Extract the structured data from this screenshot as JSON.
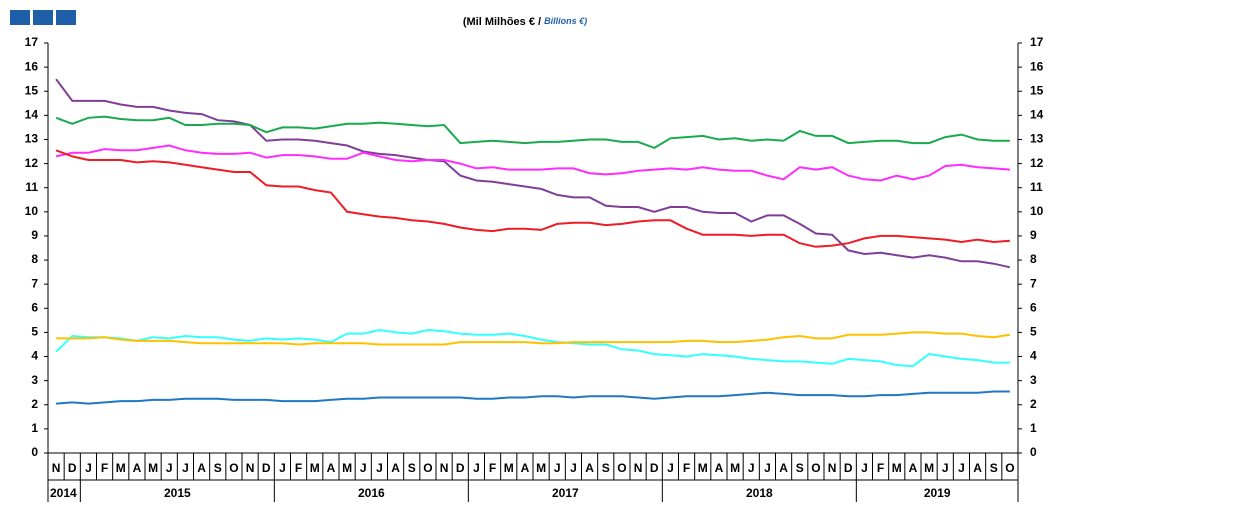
{
  "chart_data": {
    "type": "line",
    "subtitle": "(Mil Milhões € / ",
    "subtitle_en": "Billions  €)",
    "categories": [
      "N",
      "D",
      "J",
      "F",
      "M",
      "A",
      "M",
      "J",
      "J",
      "A",
      "S",
      "O",
      "N",
      "D",
      "J",
      "F",
      "M",
      "A",
      "M",
      "J",
      "J",
      "A",
      "S",
      "O",
      "N",
      "D",
      "J",
      "F",
      "M",
      "A",
      "M",
      "J",
      "J",
      "A",
      "S",
      "O",
      "N",
      "D",
      "J",
      "F",
      "M",
      "A",
      "M",
      "J",
      "J",
      "A",
      "S",
      "O",
      "N",
      "D",
      "J",
      "F",
      "M",
      "A",
      "M",
      "J",
      "J",
      "A",
      "S",
      "O"
    ],
    "years": [
      "2014",
      "2015",
      "2016",
      "2017",
      "2018",
      "2019"
    ],
    "ylim": [
      0,
      17
    ],
    "yticks": [
      0,
      1,
      2,
      3,
      4,
      5,
      6,
      7,
      8,
      9,
      10,
      11,
      12,
      13,
      14,
      15,
      16,
      17
    ],
    "y2lim": [
      0,
      17
    ],
    "y2ticks": [
      0,
      1,
      2,
      3,
      4,
      5,
      6,
      7,
      8,
      9,
      10,
      11,
      12,
      13,
      14,
      15,
      16,
      17
    ],
    "grid": false,
    "series": [
      {
        "color": "#7f3f98",
        "values": [
          15.5,
          14.6,
          14.6,
          14.6,
          14.45,
          14.35,
          14.35,
          14.2,
          14.1,
          14.05,
          13.8,
          13.75,
          13.6,
          12.95,
          13.0,
          13.0,
          12.95,
          12.85,
          12.75,
          12.5,
          12.4,
          12.35,
          12.25,
          12.15,
          12.1,
          11.5,
          11.3,
          11.25,
          11.15,
          11.05,
          10.95,
          10.7,
          10.6,
          10.6,
          10.25,
          10.2,
          10.2,
          10.0,
          10.2,
          10.2,
          10.0,
          9.95,
          9.95,
          9.6,
          9.85,
          9.85,
          9.5,
          9.1,
          9.05,
          8.4,
          8.25,
          8.3,
          8.2,
          8.1,
          8.2,
          8.1,
          7.95,
          7.95,
          7.85,
          7.7
        ]
      },
      {
        "color": "#1aa94e",
        "values": [
          13.9,
          13.65,
          13.9,
          13.95,
          13.85,
          13.8,
          13.8,
          13.9,
          13.6,
          13.6,
          13.65,
          13.65,
          13.6,
          13.3,
          13.5,
          13.5,
          13.45,
          13.55,
          13.65,
          13.65,
          13.7,
          13.65,
          13.6,
          13.55,
          13.6,
          12.85,
          12.9,
          12.95,
          12.9,
          12.85,
          12.9,
          12.9,
          12.95,
          13.0,
          13.0,
          12.9,
          12.9,
          12.65,
          13.05,
          13.1,
          13.15,
          13.0,
          13.05,
          12.95,
          13.0,
          12.95,
          13.35,
          13.15,
          13.15,
          12.85,
          12.9,
          12.95,
          12.95,
          12.85,
          12.85,
          13.1,
          13.2,
          13.0,
          12.95,
          12.95
        ]
      },
      {
        "color": "#ff2cff",
        "values": [
          12.3,
          12.45,
          12.45,
          12.6,
          12.55,
          12.55,
          12.65,
          12.75,
          12.55,
          12.45,
          12.4,
          12.4,
          12.45,
          12.25,
          12.35,
          12.35,
          12.3,
          12.2,
          12.2,
          12.45,
          12.3,
          12.15,
          12.1,
          12.15,
          12.15,
          12.0,
          11.8,
          11.85,
          11.75,
          11.75,
          11.75,
          11.8,
          11.8,
          11.6,
          11.55,
          11.6,
          11.7,
          11.75,
          11.8,
          11.75,
          11.85,
          11.75,
          11.7,
          11.7,
          11.5,
          11.35,
          11.85,
          11.75,
          11.85,
          11.5,
          11.35,
          11.3,
          11.5,
          11.35,
          11.5,
          11.9,
          11.95,
          11.85,
          11.8,
          11.75
        ]
      },
      {
        "color": "#ee1c25",
        "values": [
          12.55,
          12.3,
          12.15,
          12.15,
          12.15,
          12.05,
          12.1,
          12.05,
          11.95,
          11.85,
          11.75,
          11.65,
          11.65,
          11.1,
          11.05,
          11.05,
          10.9,
          10.8,
          10.0,
          9.9,
          9.8,
          9.75,
          9.65,
          9.6,
          9.5,
          9.35,
          9.25,
          9.2,
          9.3,
          9.3,
          9.25,
          9.5,
          9.55,
          9.55,
          9.45,
          9.5,
          9.6,
          9.65,
          9.65,
          9.3,
          9.05,
          9.05,
          9.05,
          9.0,
          9.05,
          9.05,
          8.7,
          8.55,
          8.6,
          8.7,
          8.9,
          9.0,
          9.0,
          8.95,
          8.9,
          8.85,
          8.75,
          8.85,
          8.75,
          8.8
        ]
      },
      {
        "color": "#33ffff",
        "values": [
          4.2,
          4.85,
          4.8,
          4.8,
          4.75,
          4.65,
          4.8,
          4.75,
          4.85,
          4.8,
          4.8,
          4.7,
          4.65,
          4.75,
          4.7,
          4.75,
          4.7,
          4.6,
          4.95,
          4.95,
          5.1,
          5.0,
          4.95,
          5.1,
          5.05,
          4.95,
          4.9,
          4.9,
          4.95,
          4.85,
          4.7,
          4.6,
          4.55,
          4.5,
          4.5,
          4.3,
          4.25,
          4.1,
          4.05,
          4.0,
          4.1,
          4.05,
          4.0,
          3.9,
          3.85,
          3.8,
          3.8,
          3.75,
          3.7,
          3.9,
          3.85,
          3.8,
          3.65,
          3.6,
          4.1,
          4.0,
          3.9,
          3.85,
          3.75,
          3.75
        ]
      },
      {
        "color": "#ffc000",
        "values": [
          4.75,
          4.75,
          4.75,
          4.8,
          4.7,
          4.65,
          4.65,
          4.65,
          4.6,
          4.55,
          4.55,
          4.55,
          4.55,
          4.55,
          4.55,
          4.5,
          4.55,
          4.55,
          4.55,
          4.55,
          4.5,
          4.5,
          4.5,
          4.5,
          4.5,
          4.6,
          4.6,
          4.6,
          4.6,
          4.6,
          4.55,
          4.55,
          4.6,
          4.6,
          4.6,
          4.6,
          4.6,
          4.6,
          4.6,
          4.65,
          4.65,
          4.6,
          4.6,
          4.65,
          4.7,
          4.8,
          4.85,
          4.75,
          4.75,
          4.9,
          4.9,
          4.9,
          4.95,
          5.0,
          5.0,
          4.95,
          4.95,
          4.85,
          4.8,
          4.9
        ]
      },
      {
        "color": "#1f78c1",
        "values": [
          2.05,
          2.1,
          2.05,
          2.1,
          2.15,
          2.15,
          2.2,
          2.2,
          2.25,
          2.25,
          2.25,
          2.2,
          2.2,
          2.2,
          2.15,
          2.15,
          2.15,
          2.2,
          2.25,
          2.25,
          2.3,
          2.3,
          2.3,
          2.3,
          2.3,
          2.3,
          2.25,
          2.25,
          2.3,
          2.3,
          2.35,
          2.35,
          2.3,
          2.35,
          2.35,
          2.35,
          2.3,
          2.25,
          2.3,
          2.35,
          2.35,
          2.35,
          2.4,
          2.45,
          2.5,
          2.45,
          2.4,
          2.4,
          2.4,
          2.35,
          2.35,
          2.4,
          2.4,
          2.45,
          2.5,
          2.5,
          2.5,
          2.5,
          2.55,
          2.55
        ]
      }
    ]
  }
}
